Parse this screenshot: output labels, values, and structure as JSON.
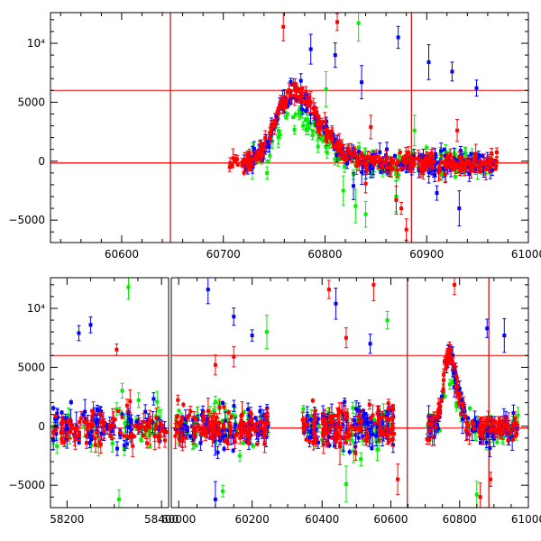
{
  "chart_data": [
    {
      "type": "scatter",
      "title": "",
      "xlabel": "",
      "ylabel": "",
      "xlim": [
        60530,
        61000
      ],
      "ylim": [
        -6900,
        12600
      ],
      "x_ticks": [
        60600,
        60700,
        60800,
        60900,
        61000
      ],
      "x_tick_labels": [
        "60600",
        "60700",
        "60800",
        "60900",
        "61000"
      ],
      "y_ticks": [
        -5000,
        0,
        5000,
        10000
      ],
      "y_tick_labels": [
        "−5000",
        "0",
        "5000",
        "10⁴"
      ],
      "hlines": [
        6000,
        -150
      ],
      "vlines": [
        60648,
        60885
      ],
      "model_curve": {
        "baseline": -150,
        "peak": 6000,
        "center": 60768,
        "sigma_left": 16,
        "sigma_right": 25
      },
      "series": [
        {
          "color": "#ff0000",
          "x_range": [
            60705,
            60970
          ],
          "n": 300,
          "scatter": 380,
          "peak_offset": 0,
          "outliers": [
            [
              60759,
              11400
            ],
            [
              60812,
              11800
            ],
            [
              60840,
              -1900
            ],
            [
              60870,
              -3300
            ],
            [
              60875,
              -4000
            ],
            [
              60880,
              -5800
            ],
            [
              60845,
              2900
            ],
            [
              60930,
              2600
            ]
          ]
        },
        {
          "color": "#0000ff",
          "x_range": [
            60720,
            60968
          ],
          "n": 260,
          "scatter": 430,
          "peak_offset": -250,
          "outliers": [
            [
              60786,
              9500
            ],
            [
              60810,
              9000
            ],
            [
              60836,
              6700
            ],
            [
              60872,
              10500
            ],
            [
              60902,
              8400
            ],
            [
              60925,
              7600
            ],
            [
              60949,
              6200
            ],
            [
              60932,
              -4000
            ],
            [
              60910,
              -2700
            ],
            [
              60828,
              -2100
            ]
          ]
        },
        {
          "color": "#00ee00",
          "x_range": [
            60728,
            60965
          ],
          "n": 180,
          "scatter": 550,
          "peak_offset": -2200,
          "outliers": [
            [
              60833,
              11700
            ],
            [
              60801,
              6100
            ],
            [
              60840,
              -4500
            ],
            [
              60830,
              -3800
            ],
            [
              60818,
              -2500
            ],
            [
              60870,
              -3000
            ],
            [
              60888,
              2600
            ],
            [
              60743,
              -1000
            ]
          ]
        }
      ]
    },
    {
      "type": "scatter",
      "title": "",
      "xlabel": "",
      "ylabel": "",
      "ylim": [
        -6900,
        12600
      ],
      "y_ticks": [
        -5000,
        0,
        5000,
        10000
      ],
      "y_tick_labels": [
        "−5000",
        "0",
        "5000",
        "10⁴"
      ],
      "hlines": [
        6000,
        -150
      ],
      "vlines": [
        60648,
        60885
      ],
      "x_segments": [
        {
          "range": [
            58165,
            58415
          ],
          "ticks": [
            58200,
            58400
          ],
          "tick_labels": [
            "58200",
            "58400"
          ]
        },
        {
          "range": [
            59980,
            60250
          ],
          "ticks": [
            60000,
            60200
          ],
          "tick_labels": [
            "60000",
            "60200"
          ]
        },
        {
          "range": [
            60250,
            61000
          ],
          "ticks": [
            60400,
            60600,
            60800,
            61000
          ],
          "tick_labels": [
            "60400",
            "60600",
            "60800",
            "61000"
          ]
        }
      ],
      "observing_seasons": [
        [
          58170,
          58410
        ],
        [
          59990,
          60245
        ],
        [
          60340,
          60610
        ],
        [
          60705,
          60970
        ]
      ],
      "model_curve": {
        "baseline": -150,
        "peak": 6000,
        "center": 60768,
        "sigma_left": 16,
        "sigma_right": 25
      },
      "series": [
        {
          "color": "#ff0000",
          "scatter": 800,
          "peak_offset": 0,
          "outliers": [
            [
              58305,
              6500
            ],
            [
              60100,
              5200
            ],
            [
              60150,
              5900
            ],
            [
              60420,
              11600
            ],
            [
              60470,
              7500
            ],
            [
              60550,
              12000
            ],
            [
              60620,
              -4500
            ],
            [
              60785,
              12000
            ],
            [
              60860,
              -6000
            ],
            [
              60890,
              -4500
            ]
          ]
        },
        {
          "color": "#0000ff",
          "scatter": 850,
          "peak_offset": -250,
          "outliers": [
            [
              58225,
              7900
            ],
            [
              58250,
              8600
            ],
            [
              60080,
              11600
            ],
            [
              60150,
              9300
            ],
            [
              60200,
              7700
            ],
            [
              60440,
              10400
            ],
            [
              60540,
              7000
            ],
            [
              60880,
              8300
            ],
            [
              60930,
              7700
            ],
            [
              60100,
              -6200
            ]
          ]
        },
        {
          "color": "#00ee00",
          "scatter": 900,
          "peak_offset": -2200,
          "outliers": [
            [
              58330,
              11800
            ],
            [
              58310,
              -6200
            ],
            [
              60240,
              8000
            ],
            [
              60120,
              -5500
            ],
            [
              60470,
              -4900
            ],
            [
              60590,
              9000
            ],
            [
              60850,
              -5800
            ]
          ]
        }
      ]
    }
  ]
}
